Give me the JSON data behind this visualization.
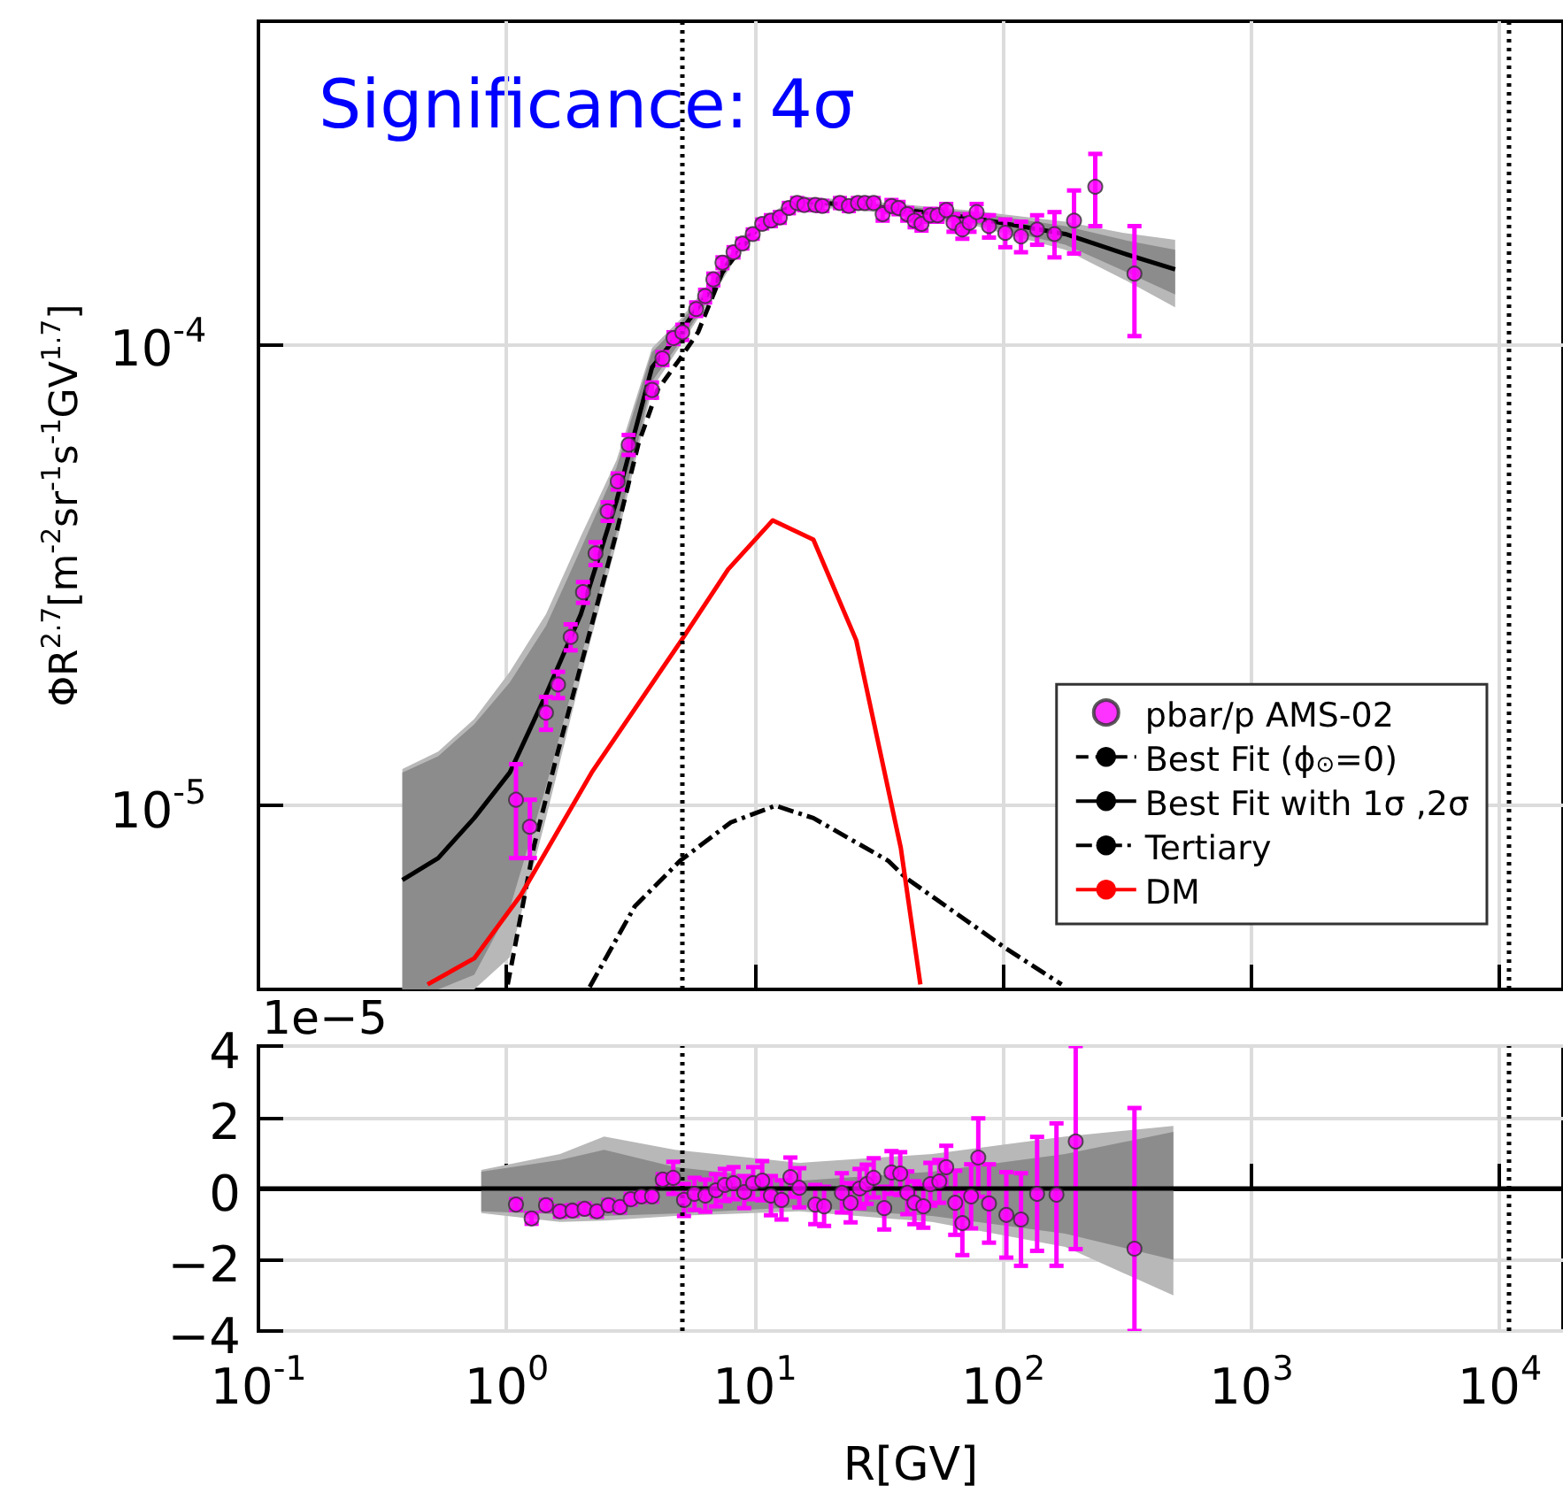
{
  "chart_data": [
    {
      "type": "line",
      "annotations": [
        "Significance: 4σ"
      ],
      "ylabel": "ΦR$^{2.7}$[m$^{-2}$sr$^{-1}$s$^{-1}$GV$^{1.7}$]",
      "log": "xy",
      "xlim": [
        0.1,
        18000
      ],
      "ylim": [
        4e-06,
        0.0005
      ],
      "xticks": [
        0.1,
        1,
        10,
        100,
        1000,
        10000
      ],
      "yticks": [
        {
          "value": 1e-05,
          "label": "10$^{-5}$"
        },
        {
          "value": 0.0001,
          "label": "10$^{-4}$"
        }
      ],
      "tick_labels": "y",
      "grid": true,
      "legend": "bottom right",
      "ref_lines": [
        {
          "axis": "x",
          "value": 5.1,
          "line_style": "dotted",
          "color": "#000000"
        },
        {
          "axis": "x",
          "value": 10900,
          "line_style": "dotted",
          "color": "#000000"
        }
      ],
      "series": [
        {
          "type": "line",
          "color": "#b8b8b8",
          "x": [
            0.38,
            0.53,
            0.74,
            1.03,
            1.44,
            1.99,
            2.77,
            3.85,
            5.0,
            6.63,
            8.8,
            10.9,
            15,
            34.4,
            78,
            178,
            306,
            493
          ],
          "values": [
            null,
            null,
            null,
            null,
            null,
            null,
            null,
            null,
            null,
            null,
            null,
            null,
            null,
            null,
            null,
            null,
            null,
            null
          ],
          "lower": [
            4e-06,
            4e-06,
            4e-06,
            4.7e-06,
            9.4e-06,
            1.9e-05,
            3.7e-05,
            8e-05,
            9.9e-05,
            0.000125,
            0.00016,
            0.000178,
            0.000199,
            0.000192,
            0.00018,
            0.00016,
            0.000138,
            0.00012
          ],
          "upper": [
            1.2e-05,
            1.31e-05,
            1.54e-05,
            1.95e-05,
            2.6e-05,
            3.83e-05,
            5.6e-05,
            9.8e-05,
            0.000113,
            0.000137,
            0.00017,
            0.000188,
            0.000209,
            0.000202,
            0.000194,
            0.000184,
            0.000174,
            0.000168
          ]
        },
        {
          "type": "line",
          "color": "#8c8c8c",
          "x": [
            0.38,
            0.53,
            0.74,
            1.03,
            1.44,
            1.99,
            2.77,
            3.85,
            5.0,
            6.63,
            8.8,
            10.9,
            15,
            34.4,
            78,
            178,
            306,
            493
          ],
          "values": [
            null,
            null,
            null,
            null,
            null,
            null,
            null,
            null,
            null,
            null,
            null,
            null,
            null,
            null,
            null,
            null,
            null,
            null
          ],
          "lower": [
            4e-06,
            4e-06,
            4.3e-06,
            6e-06,
            1.1e-05,
            2.1e-05,
            3.9e-05,
            8.3e-05,
            0.000101,
            0.000127,
            0.000162,
            0.00018,
            0.000201,
            0.000194,
            0.000182,
            0.000164,
            0.000144,
            0.000128
          ],
          "upper": [
            1.18e-05,
            1.28e-05,
            1.5e-05,
            1.85e-05,
            2.45e-05,
            3.6e-05,
            5.4e-05,
            9.6e-05,
            0.000111,
            0.000135,
            0.000168,
            0.000186,
            0.000207,
            0.0002,
            0.000192,
            0.00018,
            0.000168,
            0.00016
          ]
        },
        {
          "name": "pbar/p AMS-02",
          "type": "scatter",
          "marker": "circle",
          "color": "#ff00ff",
          "x": [
            1.09,
            1.24,
            1.44,
            1.61,
            1.81,
            2.03,
            2.28,
            2.55,
            2.8,
            3.1,
            3.85,
            4.24,
            4.7,
            5.1,
            5.8,
            6.3,
            6.8,
            7.4,
            8.2,
            8.9,
            9.8,
            10.7,
            11.6,
            12.6,
            13.7,
            14.8,
            15.8,
            17.5,
            18.7,
            22,
            23.9,
            26,
            27.7,
            30.1,
            32.7,
            35.5,
            37.9,
            41.1,
            44,
            46.9,
            50.9,
            54.4,
            59,
            63.1,
            68.5,
            73.2,
            78.2,
            87.7,
            102,
            118,
            137,
            161,
            193,
            235,
            338
          ],
          "values": [
            1.03e-05,
            9e-06,
            1.59e-05,
            1.83e-05,
            2.32e-05,
            2.9e-05,
            3.52e-05,
            4.34e-05,
            5.04e-05,
            6.05e-05,
            7.95e-05,
            9.3e-05,
            0.000103,
            0.000106,
            0.000119,
            0.000127,
            0.000138,
            0.00015,
            0.000158,
            0.000165,
            0.000173,
            0.000182,
            0.000185,
            0.000188,
            0.000197,
            0.000202,
            0.0002,
            0.0002,
            0.000199,
            0.000202,
            0.000199,
            0.000202,
            0.000202,
            0.000202,
            0.000191,
            0.000199,
            0.000197,
            0.000191,
            0.000185,
            0.000182,
            0.00019,
            0.00019,
            0.000195,
            0.000183,
            0.000177,
            0.000183,
            0.000193,
            0.00018,
            0.000174,
            0.000171,
            0.000177,
            0.000173,
            0.000185,
            0.000219,
            0.000142
          ],
          "errors": [
            [
              7.7e-06,
              1.23e-05
            ],
            [
              7.7e-06,
              1.03e-05
            ],
            1.3e-06,
            1.2e-06,
            1.5e-06,
            1.5e-06,
            2e-06,
            2e-06,
            2e-06,
            3e-06,
            3e-06,
            3e-06,
            3e-06,
            4e-06,
            4e-06,
            4e-06,
            4e-06,
            4e-06,
            4e-06,
            4e-06,
            4e-06,
            4e-06,
            5e-06,
            5e-06,
            5e-06,
            5e-06,
            5e-06,
            5e-06,
            5e-06,
            5e-06,
            5e-06,
            5e-06,
            5e-06,
            5e-06,
            6e-06,
            6e-06,
            6e-06,
            6e-06,
            6e-06,
            6e-06,
            6e-06,
            6e-06,
            6e-06,
            8e-06,
            8e-06,
            8e-06,
            8e-06,
            1e-05,
            1.2e-05,
            1.3e-05,
            [
              0.000164,
              0.00019
            ],
            [
              0.000154,
              0.000193
            ],
            [
              0.000157,
              0.000215
            ],
            [
              0.00018,
              0.000258
            ],
            [
              0.000104,
              0.00018
            ]
          ]
        },
        {
          "name": "Best Fit (ϕ$_{⊙}$=0)",
          "color": "#000000",
          "line_style": "dashed",
          "x": [
            1.01,
            1.29,
            1.59,
            2.09,
            2.77,
            3.4,
            4.05,
            5.0,
            5.9,
            7.4,
            10
          ],
          "values": [
            4.1e-06,
            8.2e-06,
            1.28e-05,
            2.22e-05,
            3.91e-05,
            6.1e-05,
            7.95e-05,
            9.3e-05,
            0.000106,
            0.000143,
            0.000175
          ]
        },
        {
          "name": "Best Fit with 1σ ,2σ",
          "color": "#000000",
          "line_style": "solid",
          "x": [
            0.38,
            0.53,
            0.74,
            1.03,
            1.44,
            1.99,
            2.77,
            3.85,
            5.0,
            6.63,
            8.8,
            10.9,
            15,
            34.4,
            78,
            178,
            306,
            493
          ],
          "values": [
            6.9e-06,
            7.7e-06,
            9.4e-06,
            1.18e-05,
            1.74e-05,
            2.6e-05,
            4.57e-05,
            8.9e-05,
            0.000106,
            0.000131,
            0.000165,
            0.000183,
            0.000204,
            0.000197,
            0.000187,
            0.000173,
            0.000157,
            0.000145
          ]
        },
        {
          "name": "Tertiary",
          "color": "#000000",
          "line_style": "dashdot",
          "x": [
            2.16,
            3.28,
            5.0,
            8.0,
            12.1,
            17.2,
            34.4,
            40.5,
            103,
            172
          ],
          "values": [
            4.05e-06,
            6.05e-06,
            7.6e-06,
            9.2e-06,
            1e-05,
            9.4e-06,
            7.6e-06,
            6.98e-06,
            4.9e-06,
            4.1e-06
          ]
        },
        {
          "name": "DM",
          "color": "#ff0000",
          "line_style": "solid",
          "x": [
            0.48,
            0.74,
            1.14,
            2.2,
            5.0,
            7.8,
            11.8,
            17.2,
            25.6,
            38.7,
            46.4
          ],
          "values": [
            4.1e-06,
            4.67e-06,
            6.4e-06,
            1.18e-05,
            2.26e-05,
            3.25e-05,
            4.15e-05,
            3.77e-05,
            2.28e-05,
            8.1e-06,
            4.1e-06
          ]
        }
      ]
    },
    {
      "type": "scatter",
      "annotations": [
        "1e−5"
      ],
      "xlabel": "R[GV]",
      "log": "x",
      "xlim": [
        0.1,
        18000
      ],
      "ylim": [
        -4,
        4
      ],
      "xticks": [
        {
          "value": 0.1,
          "label": "10$^{-1}$"
        },
        {
          "value": 1,
          "label": "10$^{0}$"
        },
        {
          "value": 10,
          "label": "10$^{1}$"
        },
        {
          "value": 100,
          "label": "10$^{2}$"
        },
        {
          "value": 1000,
          "label": "10$^{3}$"
        },
        {
          "value": 10000,
          "label": "10$^{4}$"
        }
      ],
      "yticks": [
        {
          "value": -4,
          "label": "−4"
        },
        {
          "value": -2,
          "label": "−2"
        },
        0,
        2,
        4
      ],
      "grid": true,
      "ref_lines": [
        {
          "axis": "y",
          "value": 0,
          "line_style": "solid",
          "color": "#000000"
        },
        {
          "axis": "x",
          "value": 5.1,
          "line_style": "dotted",
          "color": "#000000"
        },
        {
          "axis": "x",
          "value": 10900,
          "line_style": "dotted",
          "color": "#000000"
        }
      ],
      "series": [
        {
          "type": "line",
          "color": "#b8b8b8",
          "x": [
            0.79,
            1.64,
            2.47,
            4.77,
            15.1,
            51.8,
            178,
            485
          ],
          "values": [
            null,
            null,
            null,
            null,
            null,
            null,
            null,
            null
          ],
          "lower": [
            -0.69,
            -0.94,
            -0.9,
            -0.77,
            -0.64,
            -0.94,
            -1.64,
            -3.0
          ],
          "upper": [
            0.52,
            0.97,
            1.46,
            1.09,
            0.72,
            0.97,
            1.46,
            1.76
          ]
        },
        {
          "type": "line",
          "color": "#8c8c8c",
          "x": [
            0.79,
            1.64,
            2.47,
            4.77,
            15.1,
            51.8,
            178,
            485
          ],
          "values": [
            null,
            null,
            null,
            null,
            null,
            null,
            null,
            null
          ],
          "lower": [
            -0.64,
            -0.72,
            -0.77,
            -0.7,
            -0.52,
            -0.77,
            -1.27,
            -2.0
          ],
          "upper": [
            0.47,
            0.8,
            1.09,
            0.6,
            0.22,
            0.47,
            0.97,
            1.59
          ]
        },
        {
          "marker": "circle",
          "color": "#ff00ff",
          "x": [
            1.09,
            1.26,
            1.44,
            1.64,
            1.84,
            2.06,
            2.31,
            2.57,
            2.86,
            3.16,
            3.49,
            3.85,
            4.25,
            4.69,
            5.18,
            5.71,
            6.31,
            6.96,
            7.56,
            8.2,
            9.06,
            9.84,
            10.7,
            11.6,
            12.8,
            13.9,
            15.1,
            17.5,
            19.0,
            22.4,
            24.3,
            26.4,
            28.2,
            30.1,
            33.2,
            35.5,
            38.5,
            41.1,
            43.9,
            47.7,
            50.9,
            55.3,
            59.0,
            64.1,
            68.5,
            74.3,
            79.4,
            87.7,
            103,
            118,
            137,
            164,
            196,
            338
          ],
          "values": [
            -0.45,
            -0.84,
            -0.47,
            -0.64,
            -0.62,
            -0.57,
            -0.64,
            -0.47,
            -0.52,
            -0.3,
            -0.22,
            -0.22,
            0.25,
            0.3,
            -0.32,
            -0.15,
            -0.2,
            -0.05,
            0.1,
            0.15,
            -0.1,
            0.15,
            0.22,
            -0.2,
            -0.32,
            0.32,
            0.02,
            -0.45,
            -0.5,
            -0.12,
            -0.4,
            0,
            0.12,
            0.3,
            -0.55,
            0.45,
            0.42,
            -0.12,
            -0.4,
            -0.5,
            0.12,
            0.2,
            0.6,
            -0.4,
            -0.97,
            -0.22,
            0.87,
            -0.42,
            -0.74,
            -0.87,
            -0.15,
            -0.17,
            1.32,
            -1.69
          ],
          "errors": [
            0.15,
            0.15,
            0.15,
            0.15,
            0.15,
            0.15,
            0.15,
            0.15,
            0.15,
            0.15,
            0.15,
            0.15,
            0.15,
            0.45,
            0.45,
            0.45,
            0.45,
            0.45,
            0.45,
            0.45,
            0.45,
            0.45,
            0.55,
            0.55,
            0.55,
            0.55,
            0.55,
            0.55,
            0.55,
            0.55,
            0.55,
            0.55,
            0.55,
            0.55,
            0.6,
            0.6,
            0.6,
            0.6,
            0.6,
            0.6,
            0.6,
            0.6,
            0.6,
            0.9,
            0.9,
            0.9,
            1.1,
            1.1,
            1.2,
            1.3,
            1.6,
            2.0,
            [
              -1.7,
              4
            ],
            [
              -4,
              2.26
            ]
          ]
        }
      ]
    }
  ]
}
